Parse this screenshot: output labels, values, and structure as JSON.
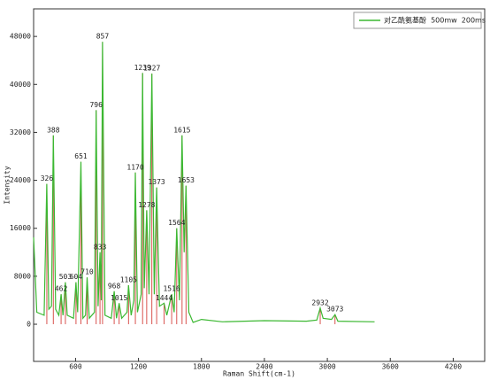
{
  "chart_data": {
    "type": "line",
    "x_label": "Raman Shift(cm-1)",
    "y_label": "Intensity",
    "xlim": [
      200,
      4500
    ],
    "ylim": [
      -6200,
      52600
    ],
    "xticks": [
      600,
      1200,
      1800,
      2400,
      3000,
      3600,
      4200
    ],
    "yticks": [
      0,
      8000,
      16000,
      24000,
      32000,
      40000,
      48000
    ],
    "legend": "top-right",
    "series": [
      {
        "name": "对乙酰氨基酚  500mw  200ms",
        "color": "#3cb832",
        "x": [
          200,
          230,
          300,
          326,
          345,
          370,
          388,
          410,
          440,
          462,
          480,
          503,
          520,
          580,
          604,
          620,
          651,
          670,
          695,
          710,
          730,
          780,
          796,
          815,
          833,
          845,
          857,
          880,
          940,
          968,
          990,
          1015,
          1040,
          1090,
          1105,
          1130,
          1155,
          1170,
          1190,
          1225,
          1239,
          1255,
          1278,
          1300,
          1327,
          1350,
          1373,
          1400,
          1444,
          1470,
          1516,
          1540,
          1564,
          1590,
          1615,
          1635,
          1653,
          1680,
          1720,
          1800,
          2000,
          2400,
          2800,
          2900,
          2932,
          2960,
          3040,
          3073,
          3100,
          3450
        ],
        "values": [
          14500,
          2000,
          1500,
          23400,
          2500,
          3000,
          31500,
          2500,
          1500,
          5000,
          1500,
          7000,
          1500,
          1000,
          7000,
          2000,
          27100,
          1000,
          1500,
          7800,
          1000,
          2000,
          35700,
          3000,
          12000,
          4000,
          47100,
          1500,
          1000,
          5500,
          1000,
          3500,
          1000,
          2000,
          6500,
          1500,
          4000,
          25300,
          2000,
          5000,
          41900,
          6000,
          19000,
          5000,
          41800,
          5000,
          22800,
          3000,
          3500,
          1500,
          5000,
          2000,
          16000,
          4000,
          31500,
          12000,
          23100,
          2000,
          300,
          800,
          400,
          600,
          500,
          700,
          2700,
          1000,
          800,
          1600,
          500,
          400
        ]
      }
    ],
    "peaks": {
      "color": "#d9534f",
      "x": [
        326,
        388,
        462,
        503,
        604,
        651,
        710,
        796,
        833,
        857,
        968,
        1015,
        1105,
        1170,
        1239,
        1278,
        1327,
        1373,
        1444,
        1516,
        1564,
        1615,
        1653,
        2932,
        3073
      ],
      "values": [
        23400,
        31500,
        5000,
        7000,
        7000,
        27100,
        7800,
        35700,
        12000,
        47100,
        5500,
        3500,
        6500,
        25300,
        41900,
        19000,
        41800,
        22800,
        3500,
        5000,
        16000,
        31500,
        23100,
        2700,
        1600
      ]
    }
  }
}
